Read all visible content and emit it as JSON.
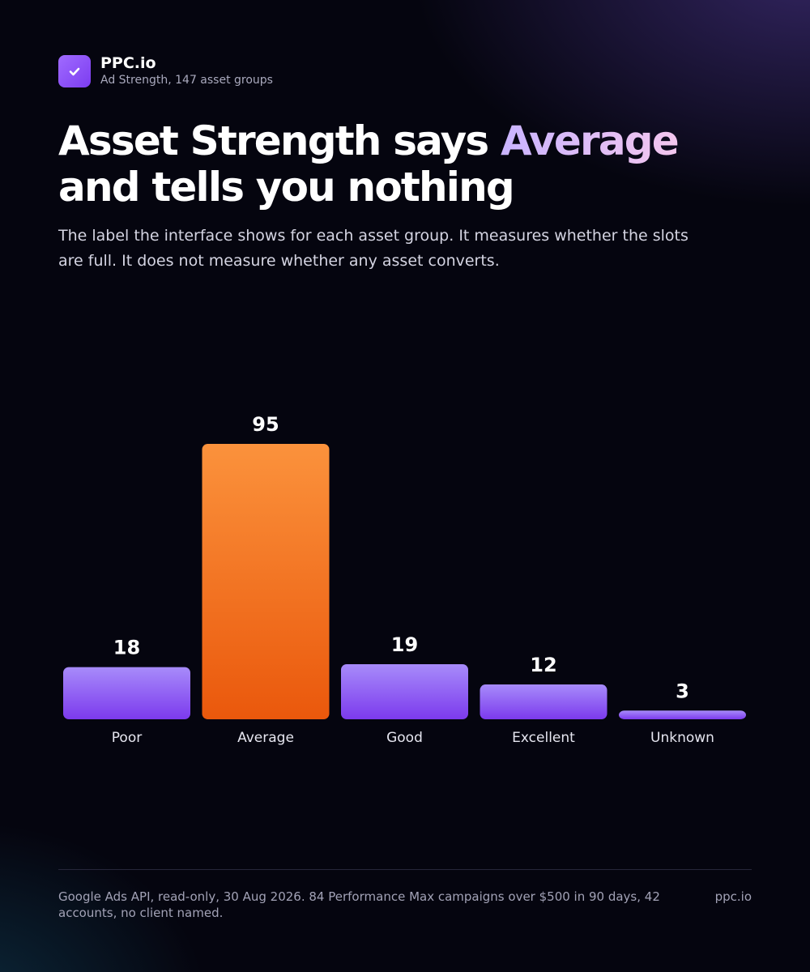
{
  "brand": {
    "name": "PPC.io",
    "subtitle": "Ad Strength, 147 asset groups",
    "logo_icon": "check-icon"
  },
  "headline": {
    "before": "Asset Strength says ",
    "highlight": "Average",
    "after": " and tells you nothing"
  },
  "subtitle": "The label the interface shows for each asset group. It measures whether the slots are full. It does not measure whether any asset converts.",
  "chart_data": {
    "type": "bar",
    "categories": [
      "Poor",
      "Average",
      "Good",
      "Excellent",
      "Unknown"
    ],
    "values": [
      18,
      95,
      19,
      12,
      3
    ],
    "highlight_index": 1,
    "xlabel": "",
    "ylabel": "",
    "ylim": [
      0,
      95
    ],
    "grid": false,
    "colors": {
      "default_top": "#a78bfa",
      "default_bottom": "#7c3aed",
      "highlight_top": "#fb923c",
      "highlight_bottom": "#ea580c"
    }
  },
  "footer": {
    "note": "Google Ads API, read-only, 30 Aug 2026. 84 Performance Max campaigns over $500 in 90 days, 42 accounts, no client named.",
    "site": "ppc.io"
  }
}
